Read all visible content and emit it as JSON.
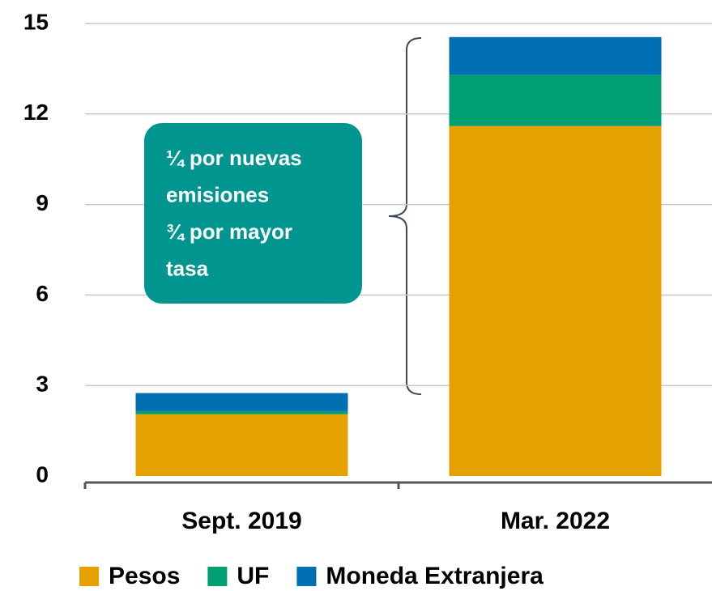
{
  "chart_data": {
    "type": "stacked_bar",
    "categories": [
      "Sept. 2019",
      "Mar. 2022"
    ],
    "series": [
      {
        "name": "Pesos",
        "color": "#E5A100",
        "values": [
          2.05,
          11.6
        ]
      },
      {
        "name": "UF",
        "color": "#00A074",
        "values": [
          0.1,
          1.7
        ]
      },
      {
        "name": "Moneda Extranjera",
        "color": "#0070B3",
        "values": [
          0.6,
          1.25
        ]
      }
    ],
    "ylim": [
      0,
      15
    ],
    "yticks": [
      0,
      3,
      6,
      9,
      12,
      15
    ],
    "grid": true,
    "legend": "bottom",
    "annotation": {
      "lines": [
        "¼ por nuevas",
        "emisiones",
        "¾ por mayor",
        "tasa"
      ],
      "color": "#00968F"
    }
  }
}
